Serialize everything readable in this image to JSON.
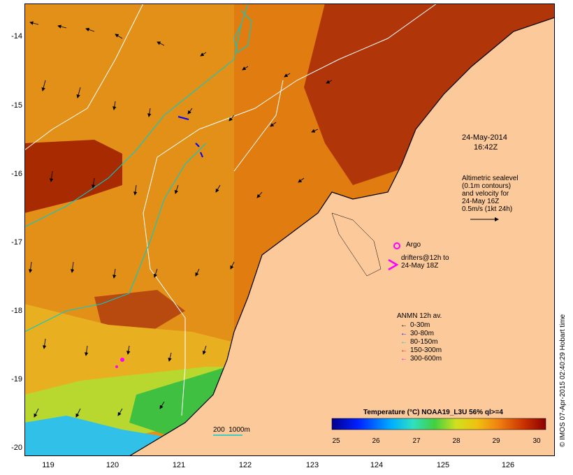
{
  "date": "24-May-2014",
  "time": "16:42Z",
  "y_axis_labels": [
    "-14",
    "-15",
    "-16",
    "-17",
    "-18",
    "-19",
    "-20"
  ],
  "x_axis_labels": [
    "119",
    "120",
    "121",
    "122",
    "123",
    "124",
    "125",
    "126"
  ],
  "altimetry_text": "Altimetric sealevel\n(0.1m contours)\nand velocity for\n24-May 16Z\n0.5m/s (1kt 24h)",
  "argo_label": "Argo",
  "drifters_label": "drifters@12h to\n24-May 18Z",
  "anmn_title": "ANMN 12h av.",
  "anmn_legend": [
    {
      "label": "0-30m",
      "color": "#000000"
    },
    {
      "label": "30-80m",
      "color": "#0000ff"
    },
    {
      "label": "80-150m",
      "color": "#00cccc"
    },
    {
      "label": "150-300m",
      "color": "#ff0000"
    },
    {
      "label": "300-600m",
      "color": "#ff00ff"
    }
  ],
  "isobath_label": "200  1000m",
  "colorbar_title": "Temperature (°C) NOAA19_L3U 56% ql>=4",
  "colorbar_ticks": [
    "25",
    "26",
    "27",
    "28",
    "29",
    "30"
  ],
  "colors": {
    "land": "#fcc99b",
    "warm_sst": "#e07c10",
    "hot_sst": "#a82a00",
    "mid_sst": "#e8a018",
    "cool_sst": "#b8d830",
    "cold_sst": "#30c0e8",
    "contour_200": "#00cccc",
    "contour_1000": "#ffffff",
    "argo": "#ff00ff"
  },
  "credit": "© IMOS 07-Apr-2015 02:40:29 Hobart time"
}
